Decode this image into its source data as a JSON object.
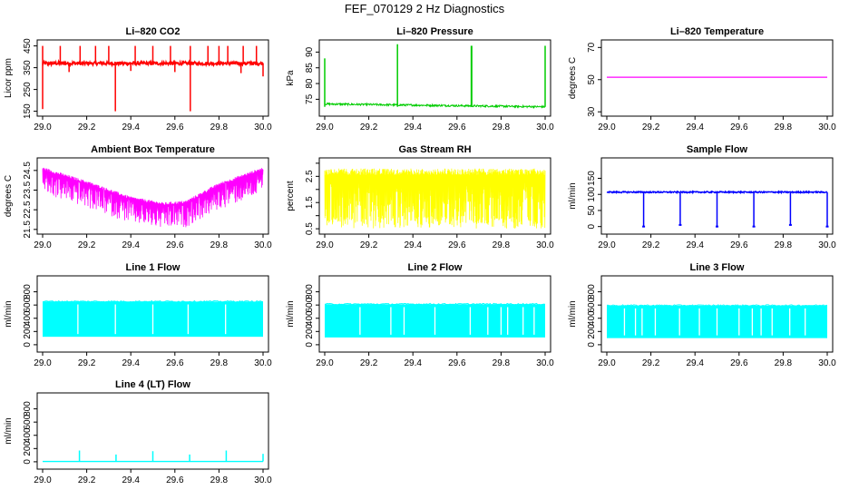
{
  "figure_title": "FEF_070129  2 Hz Diagnostics",
  "chart_data": [
    {
      "type": "line",
      "title": "Li–820 CO2",
      "ylabel": "Licor ppm",
      "color": "#ff0000",
      "xlim": [
        29.0,
        30.0
      ],
      "ylim": [
        140,
        465
      ],
      "xticks": [
        29.0,
        29.2,
        29.4,
        29.6,
        29.8,
        30.0
      ],
      "xtick_labels": [
        "29.0",
        "29.2",
        "29.4",
        "29.6",
        "29.8",
        "30.0"
      ],
      "yticks": [
        150,
        250,
        350,
        450
      ],
      "ytick_labels": [
        "150",
        "250",
        "350",
        "450"
      ],
      "series": [
        {
          "name": "CO2",
          "pattern": "spiky",
          "baseline": 370,
          "noise": 8,
          "spikes": [
            [
              29.0,
              160
            ],
            [
              29.0,
              450
            ],
            [
              29.08,
              450
            ],
            [
              29.17,
              450
            ],
            [
              29.24,
              450
            ],
            [
              29.3,
              450
            ],
            [
              29.33,
              150
            ],
            [
              29.42,
              450
            ],
            [
              29.5,
              450
            ],
            [
              29.58,
              450
            ],
            [
              29.67,
              150
            ],
            [
              29.67,
              450
            ],
            [
              29.75,
              450
            ],
            [
              29.8,
              450
            ],
            [
              29.84,
              450
            ],
            [
              29.91,
              450
            ],
            [
              29.97,
              450
            ],
            [
              30.0,
              310
            ],
            [
              29.12,
              330
            ],
            [
              29.4,
              335
            ],
            [
              29.6,
              330
            ],
            [
              29.9,
              325
            ]
          ]
        }
      ]
    },
    {
      "type": "line",
      "title": "Li–820 Pressure",
      "ylabel": "kPa",
      "color": "#00cc00",
      "xlim": [
        29.0,
        30.0
      ],
      "ylim": [
        70.5,
        93
      ],
      "xticks": [
        29.0,
        29.2,
        29.4,
        29.6,
        29.8,
        30.0
      ],
      "xtick_labels": [
        "29.0",
        "29.2",
        "29.4",
        "29.6",
        "29.8",
        "30.0"
      ],
      "yticks": [
        75,
        80,
        85,
        90
      ],
      "ytick_labels": [
        "75",
        "80",
        "85",
        "90"
      ],
      "series": [
        {
          "name": "Pressure",
          "pattern": "pressure",
          "start": 73.5,
          "end": 72.6,
          "noise": 0.3,
          "spikes": [
            [
              29.0,
              88
            ],
            [
              29.33,
              92.5
            ],
            [
              29.665,
              92
            ],
            [
              29.667,
              92
            ],
            [
              30.0,
              92
            ]
          ]
        }
      ]
    },
    {
      "type": "line",
      "title": "Li–820 Temperature",
      "ylabel": "degrees C",
      "color": "#ff00ff",
      "xlim": [
        29.0,
        30.0
      ],
      "ylim": [
        29,
        73
      ],
      "xticks": [
        29.0,
        29.2,
        29.4,
        29.6,
        29.8,
        30.0
      ],
      "xtick_labels": [
        "29.0",
        "29.2",
        "29.4",
        "29.6",
        "29.8",
        "30.0"
      ],
      "yticks": [
        30,
        50,
        70
      ],
      "ytick_labels": [
        "30",
        "50",
        "70"
      ],
      "series": [
        {
          "name": "Temperature",
          "pattern": "flat",
          "value": 51.5
        }
      ]
    },
    {
      "type": "line",
      "title": "Ambient Box Temperature",
      "ylabel": "degrees C",
      "color": "#ff00ff",
      "xlim": [
        29.0,
        30.0
      ],
      "ylim": [
        21.4,
        25.0
      ],
      "xticks": [
        29.0,
        29.2,
        29.4,
        29.6,
        29.8,
        30.0
      ],
      "xtick_labels": [
        "29.0",
        "29.2",
        "29.4",
        "29.6",
        "29.8",
        "30.0"
      ],
      "yticks": [
        21.5,
        22.5,
        23.5,
        24.5
      ],
      "ytick_labels": [
        "21.5",
        "22.5",
        "23.5",
        "24.5"
      ],
      "series": [
        {
          "name": "Ambient",
          "pattern": "valley",
          "points": [
            [
              29.0,
              24.6
            ],
            [
              29.2,
              23.9
            ],
            [
              29.4,
              23.1
            ],
            [
              29.55,
              22.8
            ],
            [
              29.65,
              22.9
            ],
            [
              29.8,
              23.8
            ],
            [
              30.0,
              24.6
            ]
          ],
          "drop": 1.3
        }
      ]
    },
    {
      "type": "line",
      "title": "Gas Stream RH",
      "ylabel": "percent",
      "color": "#ffff00",
      "xlim": [
        29.0,
        30.0
      ],
      "ylim": [
        0.4,
        3.1
      ],
      "xticks": [
        29.0,
        29.2,
        29.4,
        29.6,
        29.8,
        30.0
      ],
      "xtick_labels": [
        "29.0",
        "29.2",
        "29.4",
        "29.6",
        "29.8",
        "30.0"
      ],
      "yticks": [
        0.5,
        1.5,
        2.5
      ],
      "ytick_labels": [
        "0.5",
        "1.5",
        "2.5"
      ],
      "y_minor_ticks": [
        1.0,
        2.0,
        3.0
      ],
      "series": [
        {
          "name": "RH",
          "pattern": "band",
          "low": 0.5,
          "high": 2.8,
          "mid": 2.3
        }
      ]
    },
    {
      "type": "line",
      "title": "Sample Flow",
      "ylabel": "ml/min",
      "color": "#0000ff",
      "xlim": [
        29.0,
        30.0
      ],
      "ylim": [
        -15,
        205
      ],
      "xticks": [
        29.0,
        29.2,
        29.4,
        29.6,
        29.8,
        30.0
      ],
      "xtick_labels": [
        "29.0",
        "29.2",
        "29.4",
        "29.6",
        "29.8",
        "30.0"
      ],
      "yticks": [
        0,
        50,
        100,
        150
      ],
      "ytick_labels": [
        "0",
        "50",
        "100",
        "150"
      ],
      "series": [
        {
          "name": "Sample",
          "pattern": "drops",
          "baseline": 107,
          "noise": 2,
          "drops": [
            [
              29.167,
              0
            ],
            [
              29.333,
              5
            ],
            [
              29.5,
              0
            ],
            [
              29.667,
              0
            ],
            [
              29.833,
              5
            ],
            [
              30.0,
              0
            ]
          ]
        }
      ]
    },
    {
      "type": "line",
      "title": "Line 1 Flow",
      "ylabel": "ml/min",
      "color": "#00ffff",
      "xlim": [
        29.0,
        30.0
      ],
      "ylim": [
        -70,
        1000
      ],
      "xticks": [
        29.0,
        29.2,
        29.4,
        29.6,
        29.8,
        30.0
      ],
      "xtick_labels": [
        "29.0",
        "29.2",
        "29.4",
        "29.6",
        "29.8",
        "30.0"
      ],
      "yticks": [
        0,
        200,
        400,
        600,
        800
      ],
      "ytick_labels": [
        "0",
        "200",
        "400",
        "600",
        "800"
      ],
      "series": [
        {
          "name": "Line 1",
          "pattern": "block",
          "low": 120,
          "high": 650,
          "gaps": [
            29.16,
            29.33,
            29.5,
            29.66,
            29.83
          ]
        }
      ]
    },
    {
      "type": "line",
      "title": "Line 2 Flow",
      "ylabel": "ml/min",
      "color": "#00ffff",
      "xlim": [
        29.0,
        30.0
      ],
      "ylim": [
        -70,
        1000
      ],
      "xticks": [
        29.0,
        29.2,
        29.4,
        29.6,
        29.8,
        30.0
      ],
      "xtick_labels": [
        "29.0",
        "29.2",
        "29.4",
        "29.6",
        "29.8",
        "30.0"
      ],
      "yticks": [
        0,
        200,
        400,
        600,
        800
      ],
      "ytick_labels": [
        "0",
        "200",
        "400",
        "600",
        "800"
      ],
      "series": [
        {
          "name": "Line 2",
          "pattern": "block",
          "low": 110,
          "high": 610,
          "gaps": [
            29.16,
            29.3,
            29.36,
            29.5,
            29.66,
            29.74,
            29.8,
            29.83,
            29.9,
            29.95
          ]
        }
      ]
    },
    {
      "type": "line",
      "title": "Line 3 Flow",
      "ylabel": "ml/min",
      "color": "#00ffff",
      "xlim": [
        29.0,
        30.0
      ],
      "ylim": [
        -70,
        1000
      ],
      "xticks": [
        29.0,
        29.2,
        29.4,
        29.6,
        29.8,
        30.0
      ],
      "xtick_labels": [
        "29.0",
        "29.2",
        "29.4",
        "29.6",
        "29.8",
        "30.0"
      ],
      "yticks": [
        0,
        200,
        400,
        600,
        800
      ],
      "ytick_labels": [
        "0",
        "200",
        "400",
        "600",
        "800"
      ],
      "series": [
        {
          "name": "Line 3",
          "pattern": "block",
          "low": 100,
          "high": 590,
          "gaps": [
            29.08,
            29.13,
            29.16,
            29.22,
            29.33,
            29.42,
            29.5,
            29.6,
            29.66,
            29.7,
            29.75,
            29.83,
            29.9
          ]
        }
      ]
    },
    {
      "type": "line",
      "title": "Line 4 (LT) Flow",
      "ylabel": "ml/min",
      "color": "#00ffff",
      "xlim": [
        29.0,
        30.0
      ],
      "ylim": [
        -70,
        1000
      ],
      "xticks": [
        29.0,
        29.2,
        29.4,
        29.6,
        29.8,
        30.0
      ],
      "xtick_labels": [
        "29.0",
        "29.2",
        "29.4",
        "29.6",
        "29.8",
        "30.0"
      ],
      "yticks": [
        0,
        200,
        400,
        600,
        800
      ],
      "ytick_labels": [
        "0",
        "200",
        "400",
        "600",
        "800"
      ],
      "series": [
        {
          "name": "Line 4",
          "pattern": "pulses",
          "baseline": 5,
          "pulses": [
            [
              29.167,
              170
            ],
            [
              29.333,
              110
            ],
            [
              29.5,
              160
            ],
            [
              29.667,
              110
            ],
            [
              29.833,
              170
            ],
            [
              30.0,
              120
            ]
          ]
        }
      ]
    }
  ]
}
